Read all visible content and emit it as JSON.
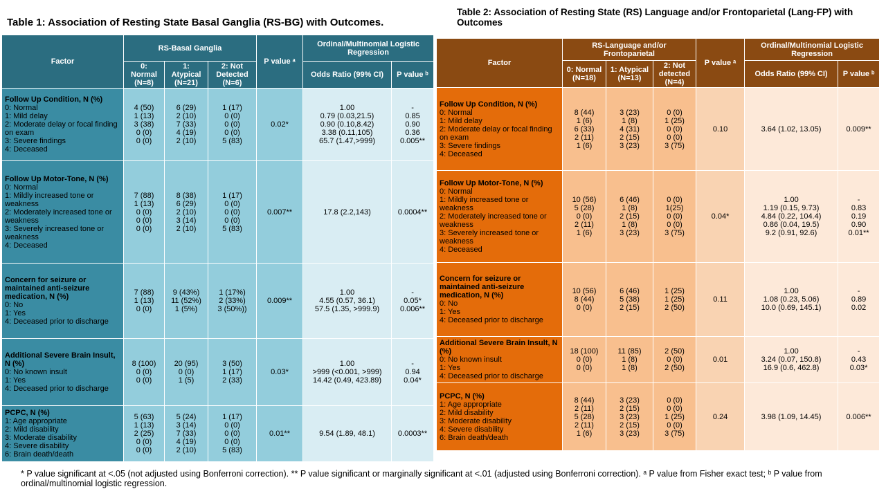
{
  "tables": [
    {
      "title": "Table 1: Association of Resting State Basal Ganglia (RS-BG) with Outcomes.",
      "header": {
        "factor": "Factor",
        "group": "RS-Basal Ganglia",
        "groups": [
          "0: Normal (N=8)",
          "1: Atypical (N=21)",
          "2: Not Detected (N=6)"
        ],
        "p": "P value ᵃ",
        "reg": "Ordinal/Multinomial Logistic Regression",
        "or": "Odds Ratio (99% CI)",
        "pb": "P value ᵇ"
      },
      "rows": [
        {
          "factor": [
            "Follow Up Condition, N (%)",
            "0: Normal",
            "1: Mild delay",
            "2: Moderate delay or focal finding on exam",
            "3: Severe findings",
            "4: Deceased"
          ],
          "c0": [
            "4 (50)",
            "1 (13)",
            "3 (38)",
            "0 (0)",
            "0 (0)"
          ],
          "c1": [
            "6 (29)",
            "2 (10)",
            "7 (33)",
            "4 (19)",
            "2 (10)"
          ],
          "c2": [
            "1 (17)",
            "0 (0)",
            "0 (0)",
            "0 (0)",
            "5 (83)"
          ],
          "p": [
            "0.02*"
          ],
          "or": [
            "1.00",
            "0.79 (0.03,21.5)",
            "0.90 (0.10,8.42)",
            "3.38 (0.11,105)",
            "65.7 (1.47,>999)"
          ],
          "pb": [
            "-",
            "0.85",
            "0.90",
            "0.36",
            "0.005**"
          ]
        },
        {
          "factor": [
            "Follow Up Motor-Tone, N (%)",
            "0: Normal",
            "1: Mildly increased tone or weakness",
            "2: Moderately increased tone or weakness",
            "3: Severely increased tone or weakness",
            "4: Deceased"
          ],
          "c0": [
            "7 (88)",
            "1 (13)",
            "0 (0)",
            "0 (0)",
            "0 (0)"
          ],
          "c1": [
            "8 (38)",
            "6 (29)",
            "2 (10)",
            "3 (14)",
            "2 (10)"
          ],
          "c2": [
            "1 (17)",
            "0 (0)",
            "0 (0)",
            "0 (0)",
            "5 (83)"
          ],
          "p": [
            "0.007**"
          ],
          "or": [
            "17.8 (2.2,143)"
          ],
          "pb": [
            "0.0004**"
          ]
        },
        {
          "factor": [
            "Concern for seizure or maintained anti-seizure medication, N (%)",
            "0: No",
            "1: Yes",
            "4: Deceased prior to discharge"
          ],
          "c0": [
            "7 (88)",
            "1 (13)",
            "0 (0)"
          ],
          "c1": [
            "9 (43%)",
            "11 (52%)",
            "1 (5%)"
          ],
          "c2": [
            "1 (17%)",
            "2 (33%)",
            "3 (50%))"
          ],
          "p": [
            "0.009**"
          ],
          "or": [
            "1.00",
            "4.55 (0.57, 36.1)",
            "57.5 (1.35, >999.9)"
          ],
          "pb": [
            "-",
            "0.05*",
            "0.006**"
          ]
        },
        {
          "factor": [
            "Additional Severe Brain Insult, N (%)",
            "0: No known insult",
            "1: Yes",
            "4: Deceased prior to discharge"
          ],
          "c0": [
            "8 (100)",
            "0 (0)",
            "0 (0)"
          ],
          "c1": [
            "20 (95)",
            "0 (0)",
            "1 (5)"
          ],
          "c2": [
            "3 (50)",
            "1 (17)",
            "2 (33)"
          ],
          "p": [
            "0.03*"
          ],
          "or": [
            "1.00",
            ">999 (<0.001, >999)",
            "14.42 (0.49, 423.89)"
          ],
          "pb": [
            "-",
            "0.94",
            "0.04*"
          ]
        },
        {
          "factor": [
            "PCPC, N (%)",
            "1: Age appropriate",
            "2: Mild disability",
            "3: Moderate disability",
            "4: Severe disability",
            "6: Brain death/death"
          ],
          "c0": [
            "5 (63)",
            "1 (13)",
            "2 (25)",
            "0 (0)",
            "0 (0)"
          ],
          "c1": [
            "5 (24)",
            "3 (14)",
            "7 (33)",
            "4 (19)",
            "2 (10)"
          ],
          "c2": [
            "1 (17)",
            "0 (0)",
            "0 (0)",
            "0 (0)",
            "5 (83)"
          ],
          "p": [
            "0.01**"
          ],
          "or": [
            "9.54 (1.89, 48.1)"
          ],
          "pb": [
            "0.0003**"
          ]
        }
      ]
    },
    {
      "title": "Table 2: Association of Resting State (RS) Language and/or Frontoparietal (Lang-FP) with Outcomes",
      "header": {
        "factor": "Factor",
        "group": "RS-Language and/or Frontoparietal",
        "groups": [
          "0: Normal (N=18)",
          "1: Atypical (N=13)",
          "2: Not detected (N=4)"
        ],
        "p": "P value ᵃ",
        "reg": "Ordinal/Multinomial Logistic Regression",
        "or": "Odds Ratio (99% CI)",
        "pb": "P value ᵇ"
      },
      "rows": [
        {
          "factor": [
            "Follow Up Condition, N (%)",
            "0: Normal",
            "1: Mild delay",
            "2: Moderate delay or focal finding on exam",
            "3: Severe findings",
            "4: Deceased"
          ],
          "c0": [
            "8 (44)",
            "1 (6)",
            "6 (33)",
            "2 (11)",
            "1 (6)"
          ],
          "c1": [
            "3 (23)",
            "1 (8)",
            "4 (31)",
            "2 (15)",
            "3 (23)"
          ],
          "c2": [
            "0 (0)",
            "1 (25)",
            "0 (0)",
            "0 (0)",
            "3 (75)"
          ],
          "p": [
            "0.10"
          ],
          "or": [
            "3.64 (1.02, 13.05)"
          ],
          "pb": [
            "0.009**"
          ]
        },
        {
          "factor": [
            "Follow Up Motor-Tone, N (%)",
            "0: Normal",
            "1: Mildly increased tone or weakness",
            "2: Moderately increased tone or weakness",
            "3: Severely increased tone or weakness",
            "4: Deceased"
          ],
          "c0": [
            "10 (56)",
            "5 (28)",
            "0 (0)",
            "2 (11)",
            "1 (6)"
          ],
          "c1": [
            "6 (46)",
            "1 (8)",
            "2 (15)",
            "1 (8)",
            "3 (23)"
          ],
          "c2": [
            "0 (0)",
            "1(25)",
            "0 (0)",
            "0 (0)",
            "3 (75)"
          ],
          "p": [
            "0.04*"
          ],
          "or": [
            "1.00",
            "1.19 (0.15, 9.73)",
            "4.84 (0.22, 104.4)",
            "0.86 (0.04, 19.5)",
            "9.2 (0.91, 92.6)"
          ],
          "pb": [
            "-",
            "0.83",
            "0.19",
            "0.90",
            "0.01**"
          ]
        },
        {
          "factor": [
            "Concern for seizure or maintained anti-seizure medication, N (%)",
            "0: No",
            "1: Yes",
            "4: Deceased prior to discharge"
          ],
          "c0": [
            "10 (56)",
            "8 (44)",
            "0 (0)"
          ],
          "c1": [
            "6 (46)",
            "5 (38)",
            "2 (15)"
          ],
          "c2": [
            "1 (25)",
            "1 (25)",
            "2 (50)"
          ],
          "p": [
            "0.11"
          ],
          "or": [
            "1.00",
            "1.08 (0.23, 5.06)",
            "10.0 (0.69, 145.1)"
          ],
          "pb": [
            "-",
            "0.89",
            "0.02"
          ]
        },
        {
          "factor": [
            "Additional Severe Brain Insult, N (%)",
            "0: No known insult",
            "1: Yes",
            "4: Deceased prior to discharge"
          ],
          "c0": [
            "18 (100)",
            "0 (0)",
            "0 (0)"
          ],
          "c1": [
            "11 (85)",
            "1 (8)",
            "1 (8)"
          ],
          "c2": [
            "2 (50)",
            "0 (0)",
            "2 (50)"
          ],
          "p": [
            "0.01"
          ],
          "or": [
            "1.00",
            "3.24 (0.07, 150.8)",
            "16.9 (0.6, 462.8)"
          ],
          "pb": [
            "-",
            "0.43",
            "0.03*"
          ]
        },
        {
          "factor": [
            "PCPC, N (%)",
            "1: Age appropriate",
            "2: Mild disability",
            "3: Moderate disability",
            "4: Severe disability",
            "6: Brain death/death"
          ],
          "c0": [
            "8 (44)",
            "2 (11)",
            "5 (28)",
            "2 (11)",
            "1 (6)"
          ],
          "c1": [
            "3 (23)",
            "2 (15)",
            "3 (23)",
            "2 (15)",
            "3 (23)"
          ],
          "c2": [
            "0 (0)",
            "0 (0)",
            "1 (25)",
            "0 (0)",
            "3 (75)"
          ],
          "p": [
            "0.24"
          ],
          "or": [
            "3.98 (1.09, 14.45)"
          ],
          "pb": [
            "0.006**"
          ]
        }
      ]
    }
  ],
  "footnote": "* P value significant at <.05 (not adjusted using Bonferroni correction). ** P value significant or marginally significant at <.01 (adjusted using Bonferroni correction). ᵃ P value from Fisher exact test; ᵇ P value from ordinal/multinomial logistic regression."
}
